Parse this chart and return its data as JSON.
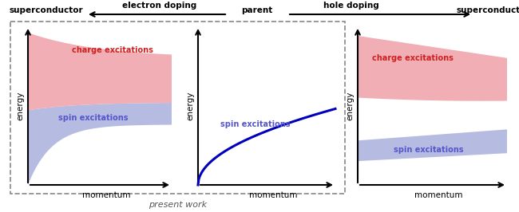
{
  "fig_width": 6.5,
  "fig_height": 2.66,
  "dpi": 100,
  "bg_color": "#ffffff",
  "spin_color": "#aab0dd",
  "charge_color": "#f0a0a8",
  "spin_label_color": "#5555cc",
  "charge_label_color": "#cc2222",
  "spin_line_color": "#0000bb",
  "dashed_box_color": "#888888",
  "top_labels": {
    "superconductor_left": "superconductor",
    "electron_doping": "electron doping",
    "parent": "parent",
    "hole_doping": "hole doping",
    "superconductor_right": "superconductor"
  },
  "bottom_label": "present work",
  "energy_label": "energy",
  "momentum_label": "momentum"
}
